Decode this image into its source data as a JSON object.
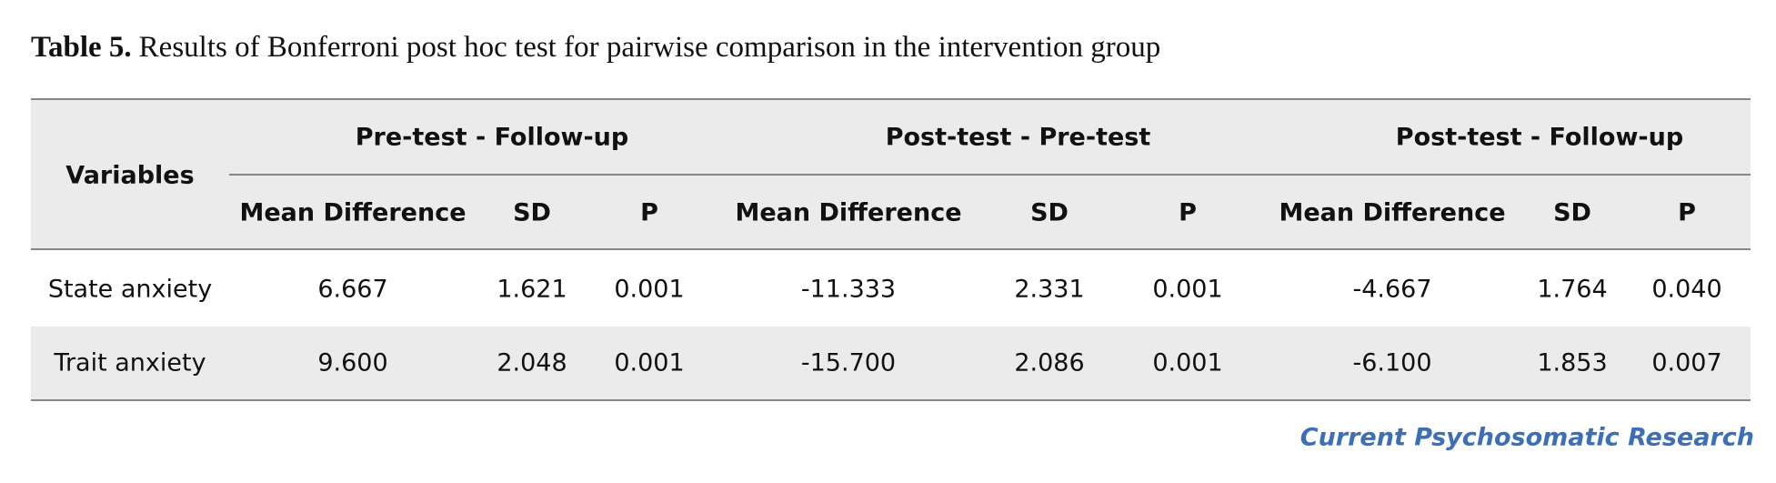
{
  "title": {
    "label": "Table 5.",
    "caption": "Results of Bonferroni post hoc test for pairwise comparison in the intervention group"
  },
  "table": {
    "row_header": "Variables",
    "groups": [
      {
        "name": "Pre-test - Follow-up",
        "columns": [
          "Mean Difference",
          "SD",
          "P"
        ]
      },
      {
        "name": "Post-test - Pre-test",
        "columns": [
          "Mean Difference",
          "SD",
          "P"
        ]
      },
      {
        "name": "Post-test - Follow-up",
        "columns": [
          "Mean Difference",
          "SD",
          "P"
        ]
      }
    ],
    "rows": [
      {
        "variable": "State anxiety",
        "cells": [
          "6.667",
          "1.621",
          "0.001",
          "-11.333",
          "2.331",
          "0.001",
          "-4.667",
          "1.764",
          "0.040"
        ]
      },
      {
        "variable": "Trait anxiety",
        "cells": [
          "9.600",
          "2.048",
          "0.001",
          "-15.700",
          "2.086",
          "0.001",
          "-6.100",
          "1.853",
          "0.007"
        ]
      }
    ]
  },
  "footer": {
    "journal": "Current Psychosomatic Research"
  }
}
